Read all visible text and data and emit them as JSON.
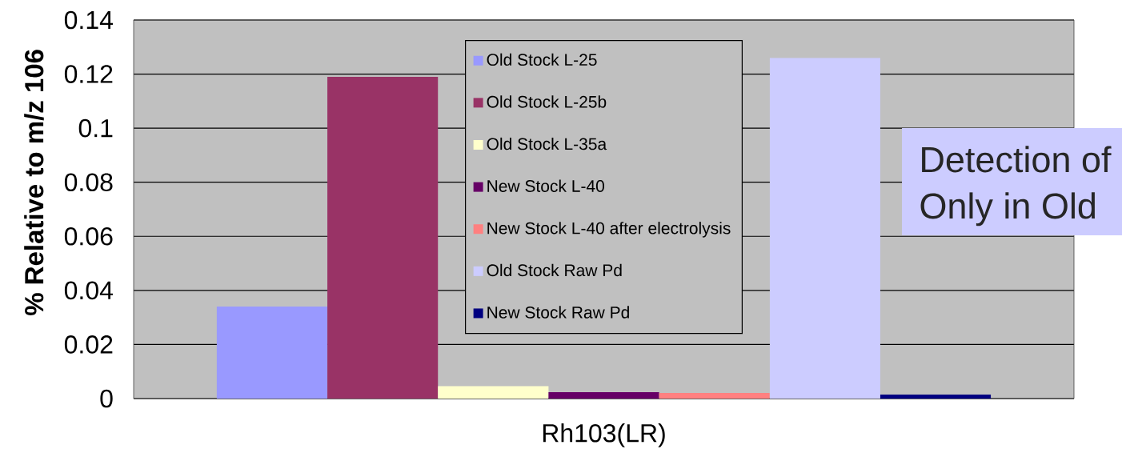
{
  "chart_data": {
    "type": "bar",
    "categories": [
      "Rh103(LR)"
    ],
    "ylabel": "% Relative to m/z 106",
    "ylim": [
      0,
      0.14
    ],
    "yticks": [
      0,
      0.02,
      0.04,
      0.06,
      0.08,
      0.1,
      0.12,
      0.14
    ],
    "grid": "y",
    "legend": "top",
    "annotations": [
      "Detection of",
      "Only in Old"
    ],
    "series": [
      {
        "name": "Old Stock L-25",
        "color": "#9999ff",
        "values": [
          0.034
        ]
      },
      {
        "name": "Old Stock L-25b",
        "color": "#993366",
        "values": [
          0.119
        ]
      },
      {
        "name": "Old Stock L-35a",
        "color": "#ffffcc",
        "values": [
          0.0046
        ]
      },
      {
        "name": "New Stock L-40",
        "color": "#660066",
        "values": [
          0.0024
        ]
      },
      {
        "name": "New Stock L-40 after electrolysis",
        "color": "#ff8080",
        "values": [
          0.0021
        ]
      },
      {
        "name": "Old Stock Raw Pd",
        "color": "#ccccff",
        "values": [
          0.126
        ]
      },
      {
        "name": "New Stock Raw Pd",
        "color": "#000080",
        "values": [
          0.0015
        ]
      }
    ]
  }
}
